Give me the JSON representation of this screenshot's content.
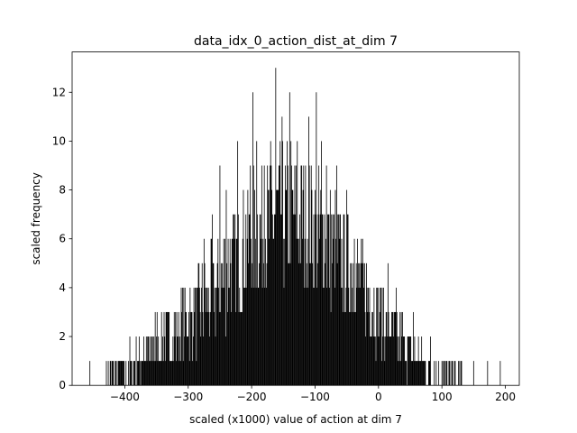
{
  "chart_data": {
    "type": "bar",
    "title": "data_idx_0_action_dist_at_dim 7",
    "xlabel": "scaled (x1000) value of action at dim 7",
    "ylabel": "scaled frequency",
    "xlim": [
      -483,
      222
    ],
    "ylim": [
      0,
      13.65
    ],
    "xticks": [
      -400,
      -300,
      -200,
      -100,
      0,
      100,
      200
    ],
    "xtick_labels": [
      "−400",
      "−300",
      "−200",
      "−100",
      "0",
      "100",
      "200"
    ],
    "yticks": [
      0,
      2,
      4,
      6,
      8,
      10,
      12
    ],
    "ytick_labels": [
      "0",
      "2",
      "4",
      "6",
      "8",
      "10",
      "12"
    ],
    "grid": false,
    "bar_color": "#000000",
    "envelope_x": [
      -455,
      -420,
      -400,
      -380,
      -360,
      -340,
      -320,
      -300,
      -280,
      -260,
      -240,
      -220,
      -200,
      -180,
      -160,
      -140,
      -120,
      -100,
      -80,
      -60,
      -40,
      -20,
      0,
      20,
      40,
      60,
      80,
      100,
      120,
      140,
      160,
      190
    ],
    "envelope_y": [
      0,
      0.3,
      0.6,
      1,
      1.4,
      1.8,
      2.2,
      2.6,
      3.2,
      3.8,
      4.6,
      5.3,
      6.0,
      6.6,
      7.0,
      7.0,
      6.8,
      6.4,
      5.9,
      5.3,
      4.6,
      3.8,
      3.0,
      2.3,
      1.7,
      1.1,
      0.7,
      0.4,
      0.2,
      0.1,
      0.05,
      0
    ],
    "peaks": [
      {
        "x": -455,
        "y": 1
      },
      {
        "x": -415,
        "y": 1
      },
      {
        "x": -408,
        "y": 1
      },
      {
        "x": -370,
        "y": 2
      },
      {
        "x": -352,
        "y": 3
      },
      {
        "x": -338,
        "y": 3
      },
      {
        "x": -318,
        "y": 3
      },
      {
        "x": -290,
        "y": 3
      },
      {
        "x": -275,
        "y": 6
      },
      {
        "x": -262,
        "y": 7
      },
      {
        "x": -250,
        "y": 9
      },
      {
        "x": -240,
        "y": 8
      },
      {
        "x": -222,
        "y": 10
      },
      {
        "x": -202,
        "y": 9
      },
      {
        "x": -198,
        "y": 12
      },
      {
        "x": -192,
        "y": 10
      },
      {
        "x": -180,
        "y": 9
      },
      {
        "x": -170,
        "y": 10
      },
      {
        "x": -162,
        "y": 13
      },
      {
        "x": -152,
        "y": 11
      },
      {
        "x": -140,
        "y": 12
      },
      {
        "x": -128,
        "y": 10
      },
      {
        "x": -110,
        "y": 11
      },
      {
        "x": -98,
        "y": 12
      },
      {
        "x": -90,
        "y": 10
      },
      {
        "x": -82,
        "y": 9
      },
      {
        "x": -66,
        "y": 9
      },
      {
        "x": -50,
        "y": 8
      },
      {
        "x": -38,
        "y": 6
      },
      {
        "x": -22,
        "y": 5
      },
      {
        "x": 8,
        "y": 4
      },
      {
        "x": 15,
        "y": 5
      },
      {
        "x": 28,
        "y": 4
      },
      {
        "x": 55,
        "y": 3
      },
      {
        "x": 82,
        "y": 2
      },
      {
        "x": 100,
        "y": 1
      },
      {
        "x": 117,
        "y": 1
      },
      {
        "x": 130,
        "y": 1
      },
      {
        "x": 150,
        "y": 1
      },
      {
        "x": 172,
        "y": 1
      },
      {
        "x": 192,
        "y": 1
      }
    ]
  }
}
